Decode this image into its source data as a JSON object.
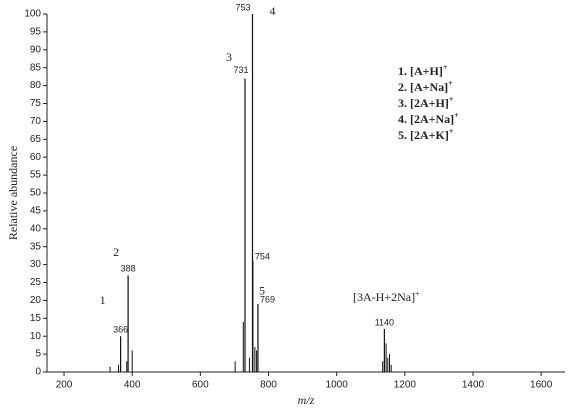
{
  "chart_data": {
    "type": "spectrum",
    "x_label": "m/z",
    "y_label": "Relative abundance",
    "x": [
      366,
      388,
      731,
      753,
      754,
      769,
      1140
    ],
    "values": [
      10,
      27,
      82,
      100,
      31,
      19,
      12
    ],
    "minor_peaks": {
      "x": [
        335,
        360,
        384,
        400,
        702,
        726,
        744,
        760,
        765,
        1135,
        1145,
        1150,
        1155,
        1160
      ],
      "values": [
        1.5,
        2,
        3,
        6,
        3,
        14,
        4,
        7,
        6,
        3,
        8,
        4,
        5,
        2
      ]
    },
    "color": "#111111",
    "xlim": [
      150,
      1670
    ],
    "ylim": [
      0,
      100
    ],
    "xticks": [
      200,
      400,
      600,
      800,
      1000,
      1200,
      1400,
      1600
    ],
    "yticks": [
      0,
      5,
      10,
      15,
      20,
      25,
      30,
      35,
      40,
      45,
      50,
      55,
      60,
      65,
      70,
      75,
      80,
      85,
      90,
      95,
      100
    ],
    "peak_numbers": [
      {
        "peak": 0,
        "label": "1"
      },
      {
        "peak": 1,
        "label": "2"
      },
      {
        "peak": 2,
        "label": "3"
      },
      {
        "peak": 3,
        "label": "4"
      },
      {
        "peak": 5,
        "label": "5"
      }
    ],
    "annotation": {
      "text": "[3A-H+2Na]",
      "sup": "+"
    },
    "legend": [
      {
        "text": "1. [A+H]",
        "sup": "+"
      },
      {
        "text": "2. [A+Na]",
        "sup": "+"
      },
      {
        "text": "3. [2A+H]",
        "sup": "+"
      },
      {
        "text": "4. [2A+Na]",
        "sup": "+"
      },
      {
        "text": "5. [2A+K]",
        "sup": "+"
      }
    ]
  }
}
